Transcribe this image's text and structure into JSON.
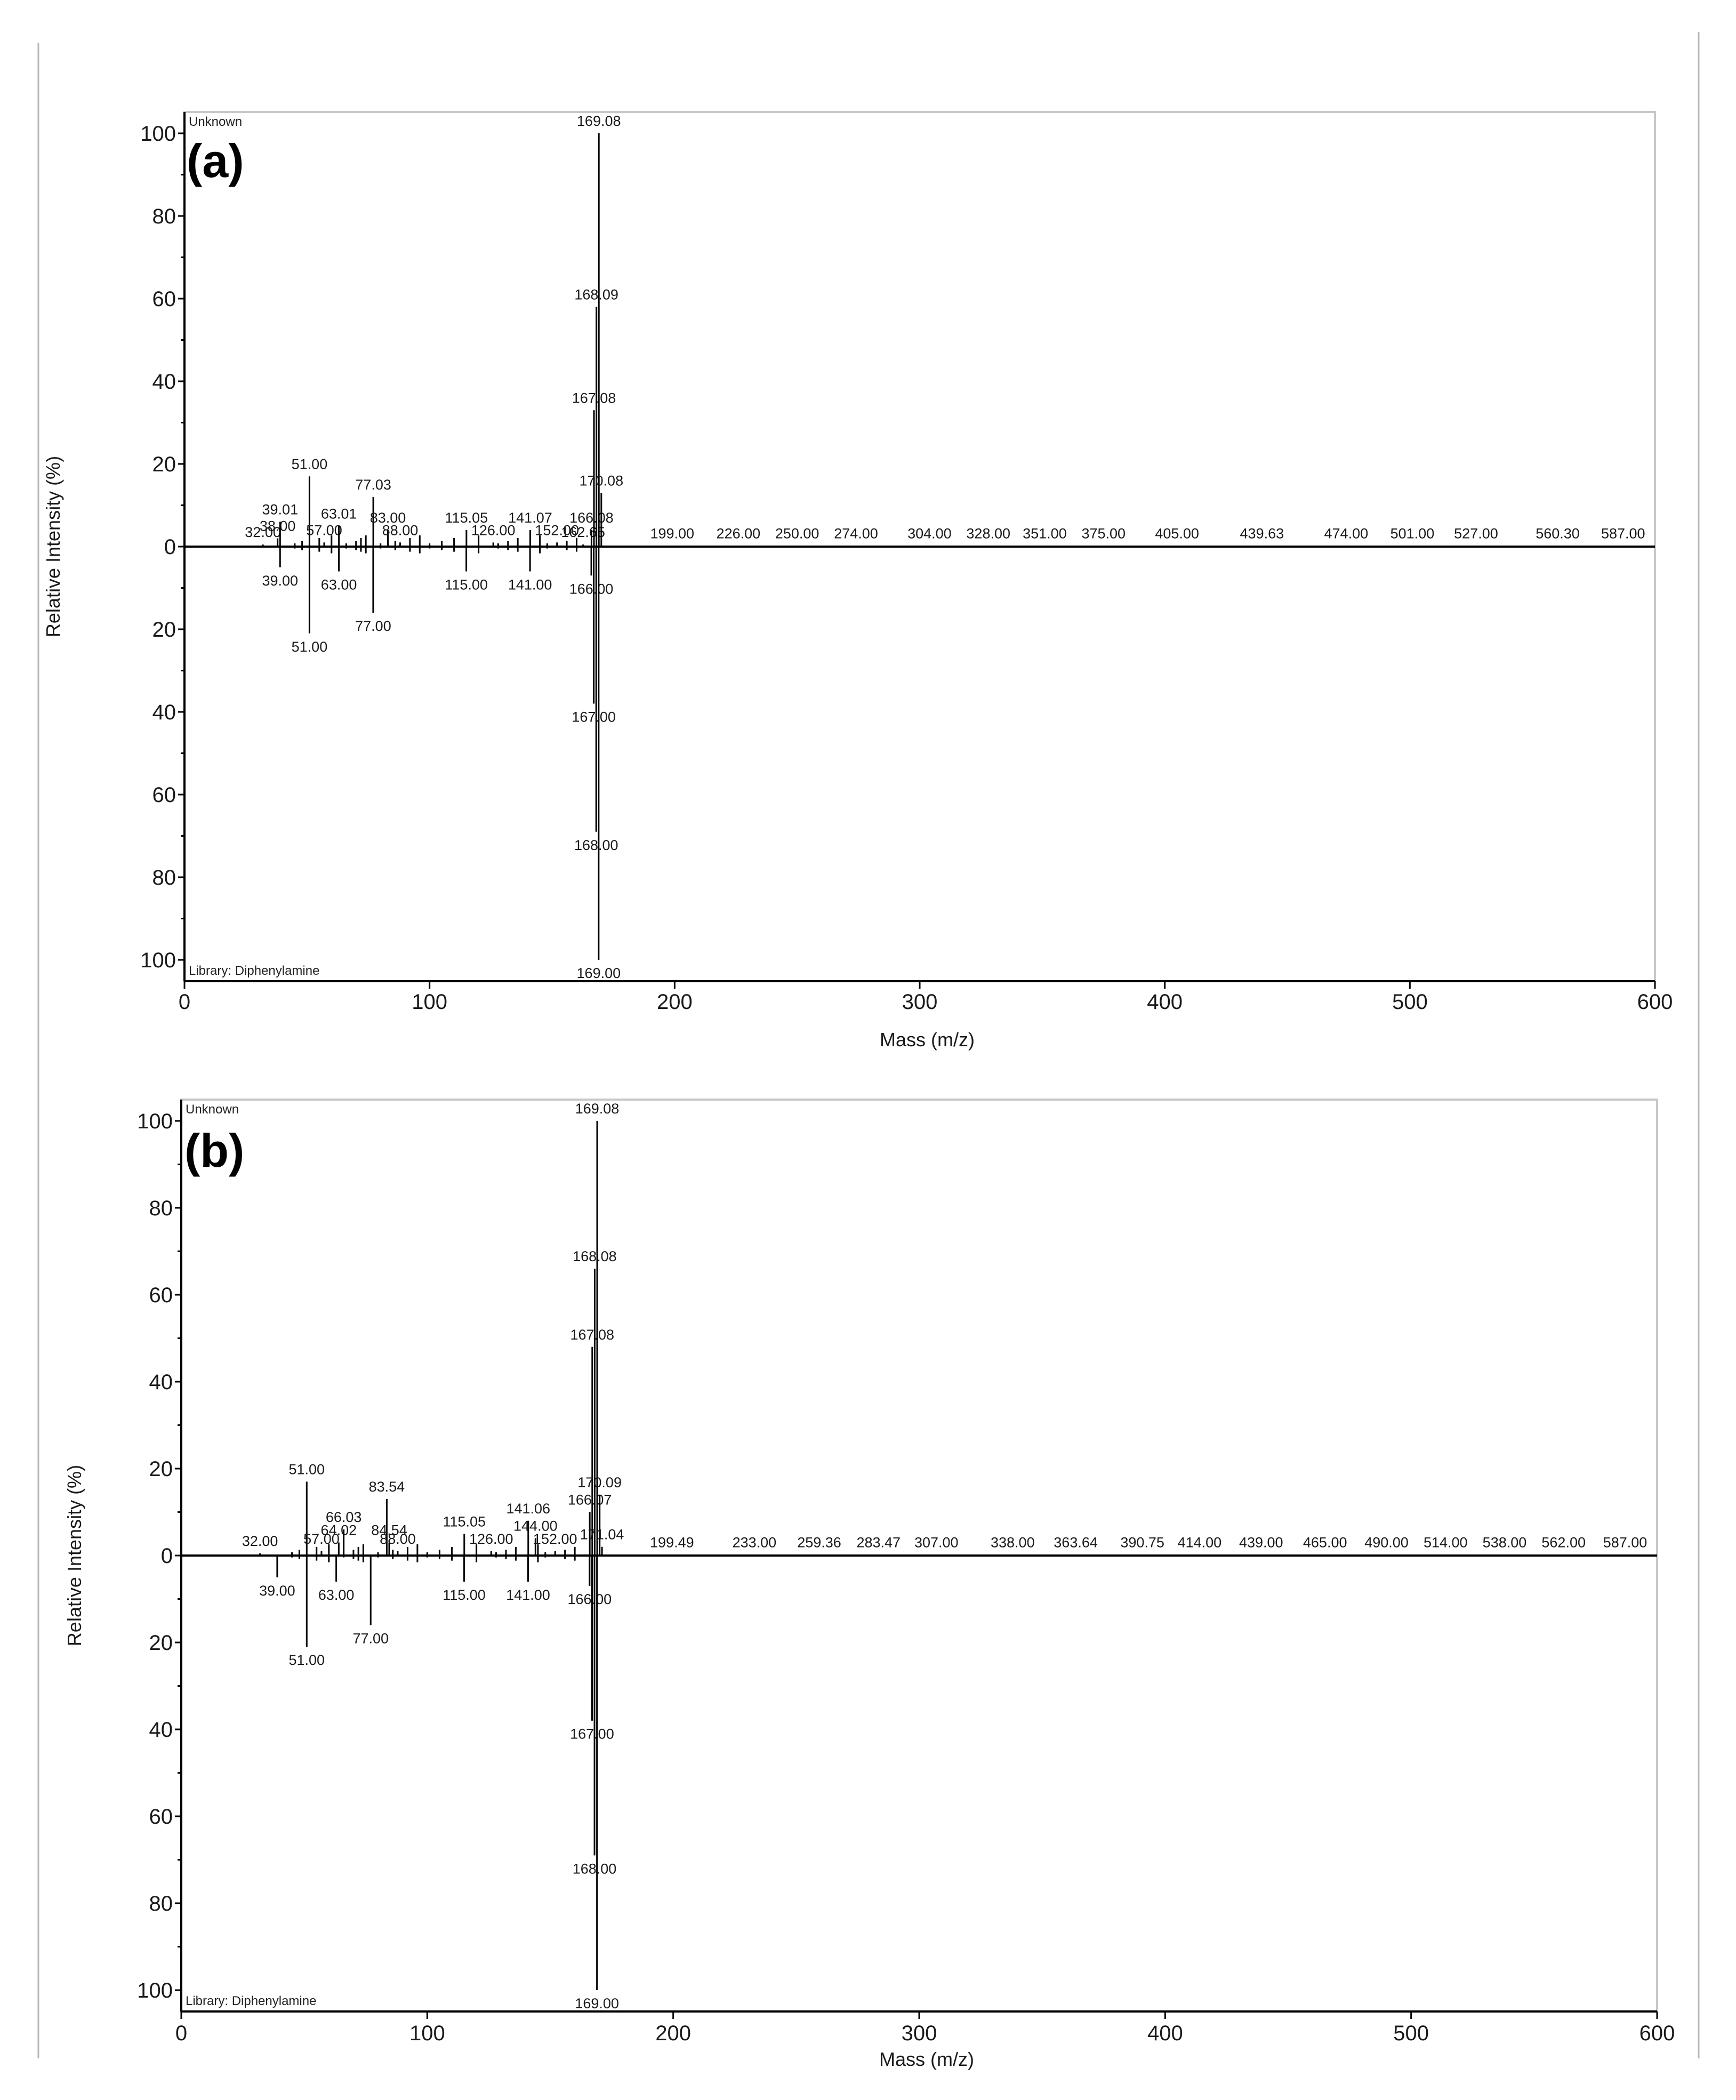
{
  "figure": {
    "title": ""
  },
  "chart_data": [
    {
      "type": "bar",
      "panel_label": "(a)",
      "top_label": "Unknown",
      "bottom_label": "Library: Diphenylamine",
      "xlabel": "Mass (m/z)",
      "ylabel": "Relative Intensity (%)",
      "xlim": [
        0,
        600
      ],
      "ylim": [
        -100,
        100
      ],
      "x_ticks": [
        0,
        100,
        200,
        300,
        400,
        500,
        600
      ],
      "y_ticks": [
        100,
        80,
        60,
        40,
        20,
        0,
        20,
        40,
        60,
        80,
        100
      ],
      "grid": false,
      "series": [
        {
          "name": "Unknown",
          "direction": "up",
          "peaks": [
            {
              "x": 32.0,
              "y": 0.5,
              "label": "32.00"
            },
            {
              "x": 38.0,
              "y": 2,
              "label": "38.00"
            },
            {
              "x": 39.01,
              "y": 6,
              "label": "39.01"
            },
            {
              "x": 51.0,
              "y": 17,
              "label": "51.00"
            },
            {
              "x": 57.0,
              "y": 1,
              "label": "57.00"
            },
            {
              "x": 63.01,
              "y": 5,
              "label": "63.01"
            },
            {
              "x": 77.03,
              "y": 12,
              "label": "77.03"
            },
            {
              "x": 83.0,
              "y": 4,
              "label": "83.00"
            },
            {
              "x": 88.0,
              "y": 1,
              "label": "88.00"
            },
            {
              "x": 115.05,
              "y": 4,
              "label": "115.05"
            },
            {
              "x": 126.0,
              "y": 1,
              "label": "126.00"
            },
            {
              "x": 141.07,
              "y": 4,
              "label": "141.07"
            },
            {
              "x": 152.0,
              "y": 1,
              "label": "152.00"
            },
            {
              "x": 162.65,
              "y": 0.5,
              "label": "162.65"
            },
            {
              "x": 166.08,
              "y": 4,
              "label": "166.08"
            },
            {
              "x": 167.08,
              "y": 33,
              "label": "167.08"
            },
            {
              "x": 168.09,
              "y": 58,
              "label": "168.09"
            },
            {
              "x": 169.08,
              "y": 100,
              "label": "169.08"
            },
            {
              "x": 170.08,
              "y": 13,
              "label": "170.08"
            },
            {
              "x": 199.0,
              "y": 0.2,
              "label": "199.00"
            },
            {
              "x": 226.0,
              "y": 0.2,
              "label": "226.00"
            },
            {
              "x": 250.0,
              "y": 0.2,
              "label": "250.00"
            },
            {
              "x": 274.0,
              "y": 0.2,
              "label": "274.00"
            },
            {
              "x": 304.0,
              "y": 0.2,
              "label": "304.00"
            },
            {
              "x": 328.0,
              "y": 0.2,
              "label": "328.00"
            },
            {
              "x": 351.0,
              "y": 0.2,
              "label": "351.00"
            },
            {
              "x": 375.0,
              "y": 0.2,
              "label": "375.00"
            },
            {
              "x": 405.0,
              "y": 0.2,
              "label": "405.00"
            },
            {
              "x": 439.63,
              "y": 0.2,
              "label": "439.63"
            },
            {
              "x": 474.0,
              "y": 0.2,
              "label": "474.00"
            },
            {
              "x": 501.0,
              "y": 0.2,
              "label": "501.00"
            },
            {
              "x": 527.0,
              "y": 0.2,
              "label": "527.00"
            },
            {
              "x": 560.3,
              "y": 0.2,
              "label": "560.30"
            },
            {
              "x": 587.0,
              "y": 0.2,
              "label": "587.00"
            }
          ]
        },
        {
          "name": "Library: Diphenylamine",
          "direction": "down",
          "peaks": [
            {
              "x": 39.0,
              "y": 5,
              "label": "39.00"
            },
            {
              "x": 51.0,
              "y": 21,
              "label": "51.00"
            },
            {
              "x": 63.0,
              "y": 6,
              "label": "63.00"
            },
            {
              "x": 77.0,
              "y": 16,
              "label": "77.00"
            },
            {
              "x": 115.0,
              "y": 6,
              "label": "115.00"
            },
            {
              "x": 141.0,
              "y": 6,
              "label": "141.00"
            },
            {
              "x": 166.0,
              "y": 7,
              "label": "166.00"
            },
            {
              "x": 167.0,
              "y": 38,
              "label": "167.00"
            },
            {
              "x": 168.0,
              "y": 69,
              "label": "168.00"
            },
            {
              "x": 169.0,
              "y": 100,
              "label": "169.00"
            }
          ]
        }
      ]
    },
    {
      "type": "bar",
      "panel_label": "(b)",
      "top_label": "Unknown",
      "bottom_label": "Library: Diphenylamine",
      "xlabel": "Mass (m/z)",
      "ylabel": "Relative Intensity (%)",
      "xlim": [
        0,
        600
      ],
      "ylim": [
        -100,
        100
      ],
      "x_ticks": [
        0,
        100,
        200,
        300,
        400,
        500,
        600
      ],
      "y_ticks": [
        100,
        80,
        60,
        40,
        20,
        0,
        20,
        40,
        60,
        80,
        100
      ],
      "grid": false,
      "series": [
        {
          "name": "Unknown",
          "direction": "up",
          "peaks": [
            {
              "x": 32.0,
              "y": 0.5,
              "label": "32.00"
            },
            {
              "x": 51.0,
              "y": 17,
              "label": "51.00"
            },
            {
              "x": 57.0,
              "y": 1,
              "label": "57.00"
            },
            {
              "x": 64.02,
              "y": 3,
              "label": "64.02"
            },
            {
              "x": 66.03,
              "y": 6,
              "label": "66.03"
            },
            {
              "x": 83.54,
              "y": 13,
              "label": "83.54"
            },
            {
              "x": 84.54,
              "y": 3,
              "label": "84.54"
            },
            {
              "x": 88.0,
              "y": 1,
              "label": "88.00"
            },
            {
              "x": 115.05,
              "y": 5,
              "label": "115.05"
            },
            {
              "x": 126.0,
              "y": 1,
              "label": "126.00"
            },
            {
              "x": 141.06,
              "y": 8,
              "label": "141.06"
            },
            {
              "x": 144.0,
              "y": 4,
              "label": "144.00"
            },
            {
              "x": 152.0,
              "y": 1,
              "label": "152.00"
            },
            {
              "x": 166.07,
              "y": 10,
              "label": "166.07"
            },
            {
              "x": 167.08,
              "y": 48,
              "label": "167.08"
            },
            {
              "x": 168.08,
              "y": 66,
              "label": "168.08"
            },
            {
              "x": 169.08,
              "y": 100,
              "label": "169.08"
            },
            {
              "x": 170.09,
              "y": 14,
              "label": "170.09"
            },
            {
              "x": 171.04,
              "y": 2,
              "label": "171.04"
            },
            {
              "x": 199.49,
              "y": 0.2,
              "label": "199.49"
            },
            {
              "x": 233.0,
              "y": 0.2,
              "label": "233.00"
            },
            {
              "x": 259.36,
              "y": 0.2,
              "label": "259.36"
            },
            {
              "x": 283.47,
              "y": 0.2,
              "label": "283.47"
            },
            {
              "x": 307.0,
              "y": 0.2,
              "label": "307.00"
            },
            {
              "x": 338.0,
              "y": 0.2,
              "label": "338.00"
            },
            {
              "x": 363.64,
              "y": 0.2,
              "label": "363.64"
            },
            {
              "x": 390.75,
              "y": 0.2,
              "label": "390.75"
            },
            {
              "x": 414.0,
              "y": 0.2,
              "label": "414.00"
            },
            {
              "x": 439.0,
              "y": 0.2,
              "label": "439.00"
            },
            {
              "x": 465.0,
              "y": 0.2,
              "label": "465.00"
            },
            {
              "x": 490.0,
              "y": 0.2,
              "label": "490.00"
            },
            {
              "x": 514.0,
              "y": 0.2,
              "label": "514.00"
            },
            {
              "x": 538.0,
              "y": 0.2,
              "label": "538.00"
            },
            {
              "x": 562.0,
              "y": 0.2,
              "label": "562.00"
            },
            {
              "x": 587.0,
              "y": 0.2,
              "label": "587.00"
            }
          ]
        },
        {
          "name": "Library: Diphenylamine",
          "direction": "down",
          "peaks": [
            {
              "x": 39.0,
              "y": 5,
              "label": "39.00"
            },
            {
              "x": 51.0,
              "y": 21,
              "label": "51.00"
            },
            {
              "x": 63.0,
              "y": 6,
              "label": "63.00"
            },
            {
              "x": 77.0,
              "y": 16,
              "label": "77.00"
            },
            {
              "x": 115.0,
              "y": 6,
              "label": "115.00"
            },
            {
              "x": 141.0,
              "y": 6,
              "label": "141.00"
            },
            {
              "x": 166.0,
              "y": 7,
              "label": "166.00"
            },
            {
              "x": 167.0,
              "y": 38,
              "label": "167.00"
            },
            {
              "x": 168.0,
              "y": 69,
              "label": "168.00"
            },
            {
              "x": 169.0,
              "y": 100,
              "label": "169.00"
            }
          ]
        }
      ]
    }
  ]
}
